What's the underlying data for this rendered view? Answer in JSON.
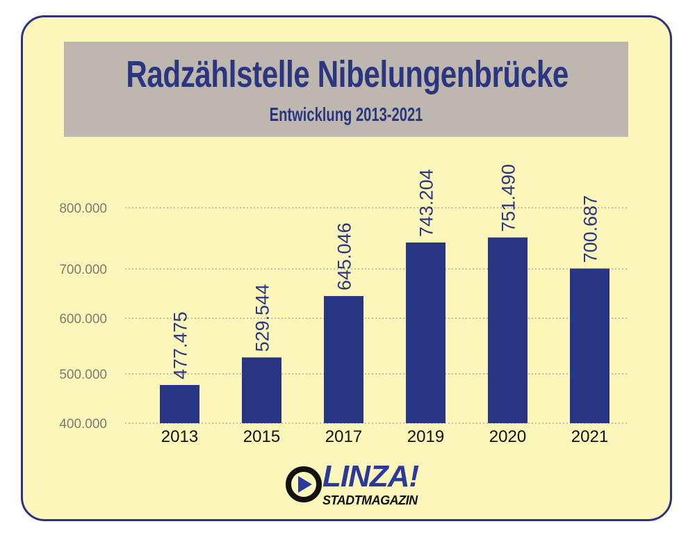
{
  "title": "Radzählstelle Nibelungenbrücke",
  "subtitle": "Entwicklung 2013-2021",
  "logo": {
    "name": "LINZA!",
    "tagline": "STADTMAGAZIN"
  },
  "colors": {
    "bar": "#283583",
    "background": "#fdf6bb",
    "titlebox": "#bdb7ae",
    "text": "#2b3681"
  },
  "chart_data": {
    "type": "bar",
    "title": "Radzählstelle Nibelungenbrücke",
    "subtitle": "Entwicklung 2013-2021",
    "xlabel": "",
    "ylabel": "",
    "categories": [
      "2013",
      "2015",
      "2017",
      "2019",
      "2020",
      "2021"
    ],
    "values": [
      477475,
      529544,
      645046,
      743204,
      751490,
      700687
    ],
    "value_labels": [
      "477.475",
      "529.544",
      "645.046",
      "743.204",
      "751.490",
      "700.687"
    ],
    "yticks": [
      400000,
      500000,
      600000,
      700000,
      800000
    ],
    "ytick_labels": [
      "400.000",
      "500.000",
      "600.000",
      "700.000",
      "800.000"
    ],
    "ylim": [
      400000,
      800000
    ],
    "grid": true,
    "legend": "none"
  }
}
